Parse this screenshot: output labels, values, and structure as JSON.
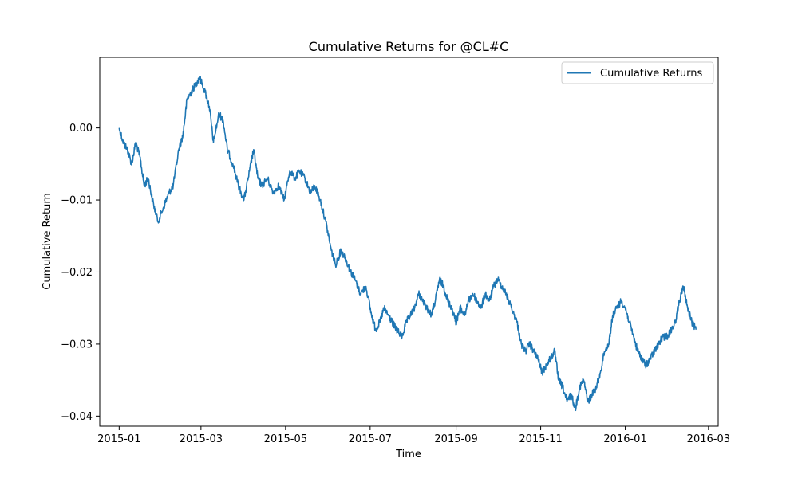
{
  "chart_data": {
    "type": "line",
    "title": "Cumulative Returns for @CL#C",
    "xlabel": "Time",
    "ylabel": "Cumulative Return",
    "x_ticks": [
      "2015-01",
      "2015-03",
      "2015-05",
      "2015-07",
      "2015-09",
      "2015-11",
      "2016-01",
      "2016-03"
    ],
    "y_ticks": [
      "0.00",
      "−0.01",
      "−0.02",
      "−0.03",
      "−0.04"
    ],
    "y_tick_values": [
      0.0,
      -0.01,
      -0.02,
      -0.03,
      -0.04
    ],
    "xlim": [
      "2014-12-18",
      "2016-03-08"
    ],
    "ylim": [
      -0.0414,
      0.0098
    ],
    "legend_position": "top-right",
    "grid": false,
    "series": [
      {
        "name": "Cumulative Returns",
        "color": "#1f77b4",
        "points": [
          [
            "2015-01-01",
            0.0
          ],
          [
            "2015-01-04",
            -0.002
          ],
          [
            "2015-01-07",
            -0.003
          ],
          [
            "2015-01-10",
            -0.005
          ],
          [
            "2015-01-13",
            -0.002
          ],
          [
            "2015-01-16",
            -0.004
          ],
          [
            "2015-01-19",
            -0.008
          ],
          [
            "2015-01-22",
            -0.007
          ],
          [
            "2015-01-25",
            -0.01
          ],
          [
            "2015-01-29",
            -0.013
          ],
          [
            "2015-02-02",
            -0.011
          ],
          [
            "2015-02-06",
            -0.009
          ],
          [
            "2015-02-09",
            -0.008
          ],
          [
            "2015-02-13",
            -0.003
          ],
          [
            "2015-02-16",
            -0.001
          ],
          [
            "2015-02-19",
            0.004
          ],
          [
            "2015-02-22",
            0.005
          ],
          [
            "2015-02-25",
            0.006
          ],
          [
            "2015-02-28",
            0.007
          ],
          [
            "2015-03-04",
            0.005
          ],
          [
            "2015-03-07",
            0.003
          ],
          [
            "2015-03-10",
            -0.002
          ],
          [
            "2015-03-14",
            0.002
          ],
          [
            "2015-03-17",
            0.001
          ],
          [
            "2015-03-20",
            -0.003
          ],
          [
            "2015-03-24",
            -0.005
          ],
          [
            "2015-03-28",
            -0.008
          ],
          [
            "2015-04-01",
            -0.01
          ],
          [
            "2015-04-05",
            -0.006
          ],
          [
            "2015-04-08",
            -0.003
          ],
          [
            "2015-04-11",
            -0.007
          ],
          [
            "2015-04-14",
            -0.008
          ],
          [
            "2015-04-18",
            -0.007
          ],
          [
            "2015-04-22",
            -0.009
          ],
          [
            "2015-04-26",
            -0.008
          ],
          [
            "2015-04-30",
            -0.01
          ],
          [
            "2015-05-04",
            -0.006
          ],
          [
            "2015-05-08",
            -0.007
          ],
          [
            "2015-05-11",
            -0.006
          ],
          [
            "2015-05-15",
            -0.007
          ],
          [
            "2015-05-19",
            -0.009
          ],
          [
            "2015-05-22",
            -0.008
          ],
          [
            "2015-05-26",
            -0.01
          ],
          [
            "2015-05-30",
            -0.013
          ],
          [
            "2015-06-03",
            -0.017
          ],
          [
            "2015-06-06",
            -0.019
          ],
          [
            "2015-06-10",
            -0.017
          ],
          [
            "2015-06-13",
            -0.018
          ],
          [
            "2015-06-17",
            -0.02
          ],
          [
            "2015-06-20",
            -0.021
          ],
          [
            "2015-06-24",
            -0.023
          ],
          [
            "2015-06-28",
            -0.022
          ],
          [
            "2015-07-02",
            -0.026
          ],
          [
            "2015-07-05",
            -0.028
          ],
          [
            "2015-07-08",
            -0.027
          ],
          [
            "2015-07-11",
            -0.025
          ],
          [
            "2015-07-14",
            -0.026
          ],
          [
            "2015-07-17",
            -0.027
          ],
          [
            "2015-07-20",
            -0.028
          ],
          [
            "2015-07-24",
            -0.029
          ],
          [
            "2015-07-27",
            -0.027
          ],
          [
            "2015-07-30",
            -0.026
          ],
          [
            "2015-08-02",
            -0.025
          ],
          [
            "2015-08-05",
            -0.023
          ],
          [
            "2015-08-08",
            -0.024
          ],
          [
            "2015-08-11",
            -0.025
          ],
          [
            "2015-08-14",
            -0.026
          ],
          [
            "2015-08-17",
            -0.024
          ],
          [
            "2015-08-20",
            -0.021
          ],
          [
            "2015-08-23",
            -0.022
          ],
          [
            "2015-08-26",
            -0.024
          ],
          [
            "2015-08-29",
            -0.025
          ],
          [
            "2015-09-01",
            -0.027
          ],
          [
            "2015-09-04",
            -0.025
          ],
          [
            "2015-09-07",
            -0.026
          ],
          [
            "2015-09-10",
            -0.024
          ],
          [
            "2015-09-13",
            -0.023
          ],
          [
            "2015-09-16",
            -0.024
          ],
          [
            "2015-09-19",
            -0.025
          ],
          [
            "2015-09-22",
            -0.023
          ],
          [
            "2015-09-25",
            -0.024
          ],
          [
            "2015-09-28",
            -0.022
          ],
          [
            "2015-10-01",
            -0.021
          ],
          [
            "2015-10-04",
            -0.022
          ],
          [
            "2015-10-07",
            -0.023
          ],
          [
            "2015-10-11",
            -0.025
          ],
          [
            "2015-10-15",
            -0.027
          ],
          [
            "2015-10-18",
            -0.03
          ],
          [
            "2015-10-21",
            -0.031
          ],
          [
            "2015-10-24",
            -0.03
          ],
          [
            "2015-10-27",
            -0.031
          ],
          [
            "2015-10-30",
            -0.032
          ],
          [
            "2015-11-02",
            -0.034
          ],
          [
            "2015-11-05",
            -0.033
          ],
          [
            "2015-11-08",
            -0.032
          ],
          [
            "2015-11-11",
            -0.031
          ],
          [
            "2015-11-14",
            -0.035
          ],
          [
            "2015-11-17",
            -0.036
          ],
          [
            "2015-11-20",
            -0.038
          ],
          [
            "2015-11-23",
            -0.037
          ],
          [
            "2015-11-26",
            -0.039
          ],
          [
            "2015-11-29",
            -0.036
          ],
          [
            "2015-12-02",
            -0.035
          ],
          [
            "2015-12-05",
            -0.038
          ],
          [
            "2015-12-08",
            -0.037
          ],
          [
            "2015-12-11",
            -0.036
          ],
          [
            "2015-12-14",
            -0.034
          ],
          [
            "2015-12-17",
            -0.031
          ],
          [
            "2015-12-20",
            -0.03
          ],
          [
            "2015-12-23",
            -0.026
          ],
          [
            "2015-12-26",
            -0.025
          ],
          [
            "2015-12-29",
            -0.024
          ],
          [
            "2016-01-01",
            -0.025
          ],
          [
            "2016-01-04",
            -0.027
          ],
          [
            "2016-01-07",
            -0.029
          ],
          [
            "2016-01-10",
            -0.031
          ],
          [
            "2016-01-13",
            -0.032
          ],
          [
            "2016-01-16",
            -0.033
          ],
          [
            "2016-01-19",
            -0.032
          ],
          [
            "2016-01-22",
            -0.031
          ],
          [
            "2016-01-25",
            -0.03
          ],
          [
            "2016-01-28",
            -0.029
          ],
          [
            "2016-01-31",
            -0.029
          ],
          [
            "2016-02-03",
            -0.028
          ],
          [
            "2016-02-06",
            -0.027
          ],
          [
            "2016-02-09",
            -0.024
          ],
          [
            "2016-02-12",
            -0.022
          ],
          [
            "2016-02-15",
            -0.025
          ],
          [
            "2016-02-18",
            -0.027
          ],
          [
            "2016-02-21",
            -0.028
          ]
        ]
      }
    ]
  }
}
